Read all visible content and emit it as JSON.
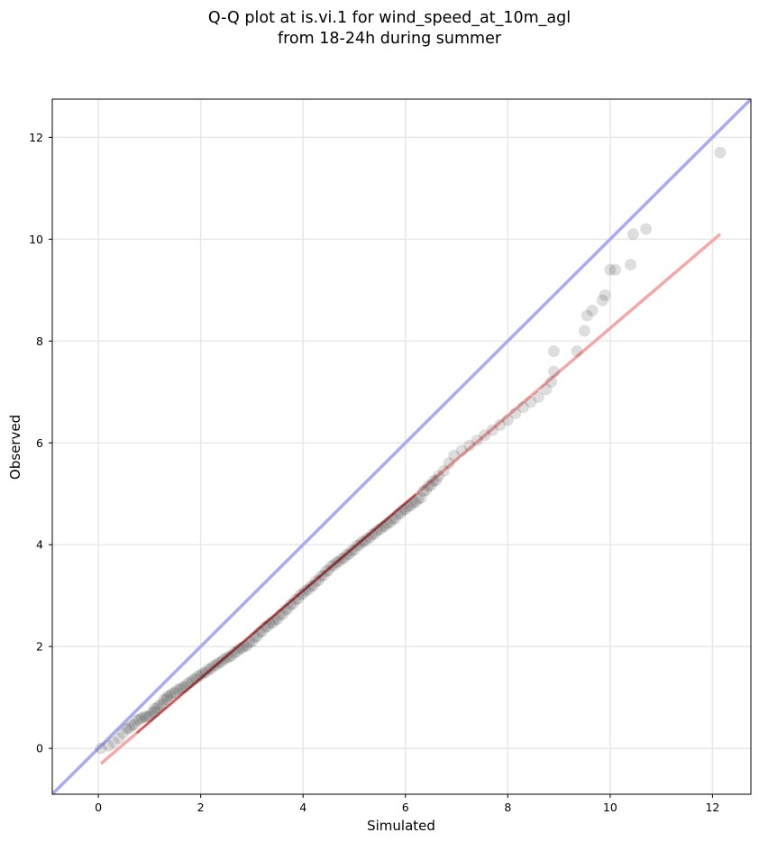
{
  "chart_data": {
    "type": "scatter",
    "title_lines": [
      "Q-Q plot at is.vi.1 for wind_speed_at_10m_agl",
      "from 18-24h during summer"
    ],
    "xlabel": "Simulated",
    "ylabel": "Observed",
    "xlim": [
      -0.9,
      12.75
    ],
    "ylim": [
      -0.9,
      12.75
    ],
    "xticks": [
      0,
      2,
      4,
      6,
      8,
      10,
      12
    ],
    "yticks": [
      0,
      2,
      4,
      6,
      8,
      10,
      12
    ],
    "grid": true,
    "colors": {
      "points": "#000000",
      "identity_line": "#aaaaf5",
      "fit_line": "#f5a8a8",
      "fit_line_dense": "#c03030"
    },
    "identity_line": {
      "from": [
        -0.9,
        -0.9
      ],
      "to": [
        12.75,
        12.75
      ]
    },
    "fit_line": {
      "from": [
        0.05,
        -0.3
      ],
      "to": [
        12.15,
        10.1
      ]
    },
    "points": [
      [
        0.05,
        0.0
      ],
      [
        0.2,
        0.05
      ],
      [
        0.3,
        0.12
      ],
      [
        0.4,
        0.2
      ],
      [
        0.48,
        0.3
      ],
      [
        0.55,
        0.38
      ],
      [
        0.65,
        0.45
      ],
      [
        0.75,
        0.55
      ],
      [
        0.85,
        0.6
      ],
      [
        0.95,
        0.62
      ],
      [
        1.05,
        0.7
      ],
      [
        1.1,
        0.78
      ],
      [
        1.2,
        0.85
      ],
      [
        1.28,
        0.95
      ],
      [
        1.35,
        1.02
      ],
      [
        1.45,
        1.08
      ],
      [
        1.55,
        1.15
      ],
      [
        1.65,
        1.2
      ],
      [
        1.75,
        1.28
      ],
      [
        1.85,
        1.35
      ],
      [
        1.95,
        1.42
      ],
      [
        2.05,
        1.48
      ],
      [
        2.15,
        1.55
      ],
      [
        2.25,
        1.62
      ],
      [
        2.35,
        1.68
      ],
      [
        2.45,
        1.75
      ],
      [
        2.55,
        1.8
      ],
      [
        2.65,
        1.88
      ],
      [
        2.75,
        1.95
      ],
      [
        2.85,
        2.0
      ],
      [
        2.95,
        2.08
      ],
      [
        3.05,
        2.18
      ],
      [
        3.15,
        2.28
      ],
      [
        3.25,
        2.38
      ],
      [
        3.35,
        2.45
      ],
      [
        3.45,
        2.52
      ],
      [
        3.55,
        2.62
      ],
      [
        3.65,
        2.72
      ],
      [
        3.75,
        2.82
      ],
      [
        3.85,
        2.92
      ],
      [
        3.95,
        3.02
      ],
      [
        4.05,
        3.1
      ],
      [
        4.15,
        3.18
      ],
      [
        4.25,
        3.28
      ],
      [
        4.35,
        3.38
      ],
      [
        4.45,
        3.48
      ],
      [
        4.55,
        3.58
      ],
      [
        4.65,
        3.65
      ],
      [
        4.75,
        3.72
      ],
      [
        4.85,
        3.8
      ],
      [
        4.95,
        3.88
      ],
      [
        5.05,
        3.98
      ],
      [
        5.15,
        4.05
      ],
      [
        5.25,
        4.12
      ],
      [
        5.35,
        4.2
      ],
      [
        5.45,
        4.28
      ],
      [
        5.55,
        4.35
      ],
      [
        5.65,
        4.42
      ],
      [
        5.75,
        4.5
      ],
      [
        5.85,
        4.6
      ],
      [
        5.95,
        4.68
      ],
      [
        6.05,
        4.75
      ],
      [
        6.15,
        4.82
      ],
      [
        6.25,
        4.9
      ],
      [
        6.35,
        5.05
      ],
      [
        6.45,
        5.15
      ],
      [
        6.55,
        5.25
      ],
      [
        6.65,
        5.35
      ],
      [
        6.75,
        5.45
      ],
      [
        6.85,
        5.6
      ],
      [
        6.95,
        5.75
      ],
      [
        7.1,
        5.85
      ],
      [
        7.25,
        5.95
      ],
      [
        7.4,
        6.05
      ],
      [
        7.55,
        6.15
      ],
      [
        7.7,
        6.25
      ],
      [
        7.85,
        6.35
      ],
      [
        8.0,
        6.45
      ],
      [
        8.15,
        6.58
      ],
      [
        8.3,
        6.7
      ],
      [
        8.45,
        6.8
      ],
      [
        8.6,
        6.9
      ],
      [
        8.75,
        7.05
      ],
      [
        8.85,
        7.2
      ],
      [
        8.9,
        7.4
      ],
      [
        8.9,
        7.8
      ],
      [
        9.35,
        7.8
      ],
      [
        9.5,
        8.2
      ],
      [
        9.55,
        8.5
      ],
      [
        9.65,
        8.6
      ],
      [
        9.85,
        8.8
      ],
      [
        9.9,
        8.9
      ],
      [
        10.0,
        9.4
      ],
      [
        10.1,
        9.4
      ],
      [
        10.4,
        9.5
      ],
      [
        10.45,
        10.1
      ],
      [
        10.7,
        10.2
      ],
      [
        12.15,
        11.7
      ]
    ]
  }
}
